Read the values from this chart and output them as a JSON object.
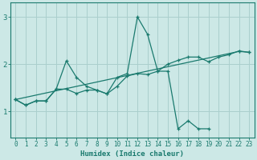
{
  "background_color": "#cce8e6",
  "grid_color": "#aacfcd",
  "line_color": "#1a7a6e",
  "xlabel": "Humidex (Indice chaleur)",
  "xlim": [
    -0.5,
    23.5
  ],
  "ylim": [
    0.45,
    3.3
  ],
  "yticks": [
    1,
    2,
    3
  ],
  "xticks": [
    0,
    1,
    2,
    3,
    4,
    5,
    6,
    7,
    8,
    9,
    10,
    11,
    12,
    13,
    14,
    15,
    16,
    17,
    18,
    19,
    20,
    21,
    22,
    23
  ],
  "line1_x": [
    0,
    1,
    2,
    3,
    4,
    5,
    6,
    7,
    8,
    9,
    10,
    11,
    12,
    13,
    14,
    15,
    16,
    17,
    18,
    19,
    20,
    21,
    22,
    23
  ],
  "line1_y": [
    1.25,
    1.13,
    1.22,
    1.22,
    1.47,
    2.07,
    1.72,
    1.53,
    1.45,
    1.37,
    1.53,
    1.75,
    1.8,
    1.78,
    1.85,
    2.0,
    2.08,
    2.15,
    2.15,
    2.05,
    2.15,
    2.2,
    2.28,
    2.25
  ],
  "line2_x": [
    0,
    1,
    2,
    3,
    4,
    5,
    6,
    7,
    8,
    9,
    10,
    11,
    12,
    13,
    14,
    15,
    16,
    17,
    18,
    19
  ],
  "line2_y": [
    1.25,
    1.13,
    1.22,
    1.22,
    1.47,
    1.47,
    1.38,
    1.45,
    1.45,
    1.37,
    1.72,
    1.8,
    3.0,
    2.63,
    1.85,
    1.85,
    0.63,
    0.8,
    0.63,
    0.63
  ],
  "line3_x": [
    0,
    22,
    23
  ],
  "line3_y": [
    1.25,
    2.27,
    2.25
  ]
}
